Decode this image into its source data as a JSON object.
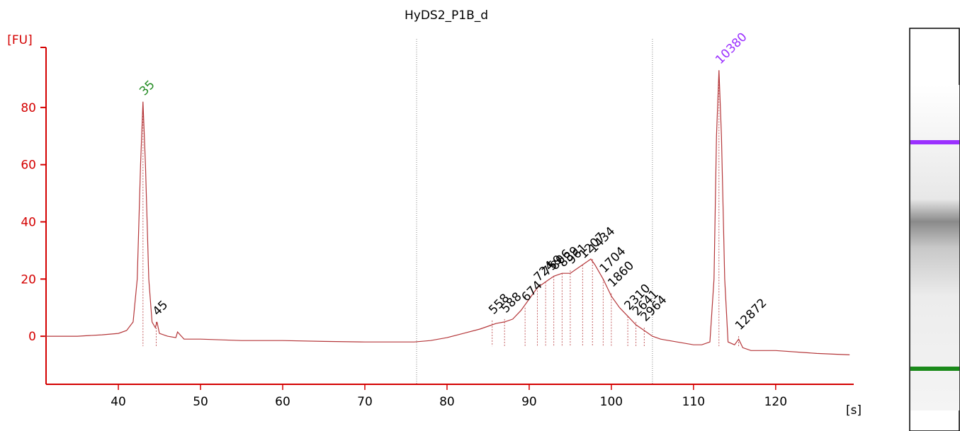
{
  "chart_data": {
    "type": "line",
    "title": "HyDS2_P1B_d",
    "y_label": "[FU]",
    "x_label": "[s]",
    "color": "#b5373a",
    "axis_color": "#d40000",
    "xlim": [
      31.2,
      129.5
    ],
    "ylim": [
      -16.8,
      101
    ],
    "xticks": [
      40,
      50,
      60,
      70,
      80,
      90,
      100,
      110,
      120
    ],
    "yticks": [
      0,
      20,
      40,
      60,
      80
    ],
    "x": [
      31,
      35,
      38,
      40,
      41,
      41.8,
      42.3,
      42.7,
      43,
      43.3,
      43.7,
      44.1,
      44.5,
      44.7,
      45,
      46,
      47,
      47.2,
      48,
      50,
      55,
      60,
      65,
      70,
      75,
      76,
      78,
      80,
      82,
      84,
      85,
      86,
      87,
      88,
      89,
      90,
      91,
      92,
      93,
      94,
      95,
      96,
      97,
      97.5,
      98,
      99,
      100,
      101,
      102,
      103,
      104,
      105,
      106,
      108,
      110,
      111,
      112,
      112.5,
      112.8,
      113.1,
      113.4,
      113.8,
      114.2,
      115,
      115.5,
      116,
      117,
      120,
      125,
      129
    ],
    "values": [
      0,
      0,
      0.5,
      1,
      2,
      5,
      20,
      60,
      82,
      60,
      20,
      5,
      3,
      5,
      1,
      0,
      -0.5,
      1.5,
      -1,
      -1,
      -1.5,
      -1.5,
      -1.8,
      -2,
      -2,
      -2,
      -1.5,
      -0.5,
      1,
      2.5,
      3.5,
      4.5,
      5,
      6,
      9,
      13,
      17,
      19,
      21,
      22,
      22,
      24,
      26,
      27,
      25,
      20,
      14,
      10,
      7,
      4,
      2,
      0,
      -1,
      -2,
      -3,
      -3,
      -2,
      20,
      70,
      93,
      70,
      20,
      -2,
      -3,
      -1,
      -4,
      -5,
      -5,
      -6,
      -6.5
    ],
    "regions": [
      76.3,
      105
    ],
    "peaks": [
      {
        "size": 35,
        "x": 43,
        "y": 82,
        "color": "#228b22"
      },
      {
        "size": 45,
        "x": 44.6,
        "y": 5,
        "color": "#000000"
      },
      {
        "size": 558,
        "x": 85.5,
        "y": 5.5,
        "color": "#000000"
      },
      {
        "size": 588,
        "x": 87,
        "y": 6,
        "color": "#000000"
      },
      {
        "size": 674,
        "x": 89.5,
        "y": 10,
        "color": "#000000"
      },
      {
        "size": 724,
        "x": 91,
        "y": 17,
        "color": "#000000"
      },
      {
        "size": 759,
        "x": 92,
        "y": 19,
        "color": "#000000"
      },
      {
        "size": 806,
        "x": 93,
        "y": 21,
        "color": "#000000"
      },
      {
        "size": 839,
        "x": 94,
        "y": 22,
        "color": "#000000"
      },
      {
        "size": 961,
        "x": 95,
        "y": 23,
        "color": "#000000"
      },
      {
        "size": 1207,
        "x": 96.5,
        "y": 25,
        "color": "#000000"
      },
      {
        "size": 1434,
        "x": 97.7,
        "y": 27,
        "color": "#000000"
      },
      {
        "size": 1704,
        "x": 99,
        "y": 20,
        "color": "#000000"
      },
      {
        "size": 1860,
        "x": 100,
        "y": 15,
        "color": "#000000"
      },
      {
        "size": 2310,
        "x": 102,
        "y": 7,
        "color": "#000000"
      },
      {
        "size": 2641,
        "x": 103,
        "y": 5,
        "color": "#000000"
      },
      {
        "size": 2964,
        "x": 104,
        "y": 3,
        "color": "#000000"
      },
      {
        "size": 10380,
        "x": 113.1,
        "y": 93,
        "color": "#9b30ff"
      },
      {
        "size": 12872,
        "x": 115.5,
        "y": 0,
        "color": "#000000"
      }
    ]
  }
}
